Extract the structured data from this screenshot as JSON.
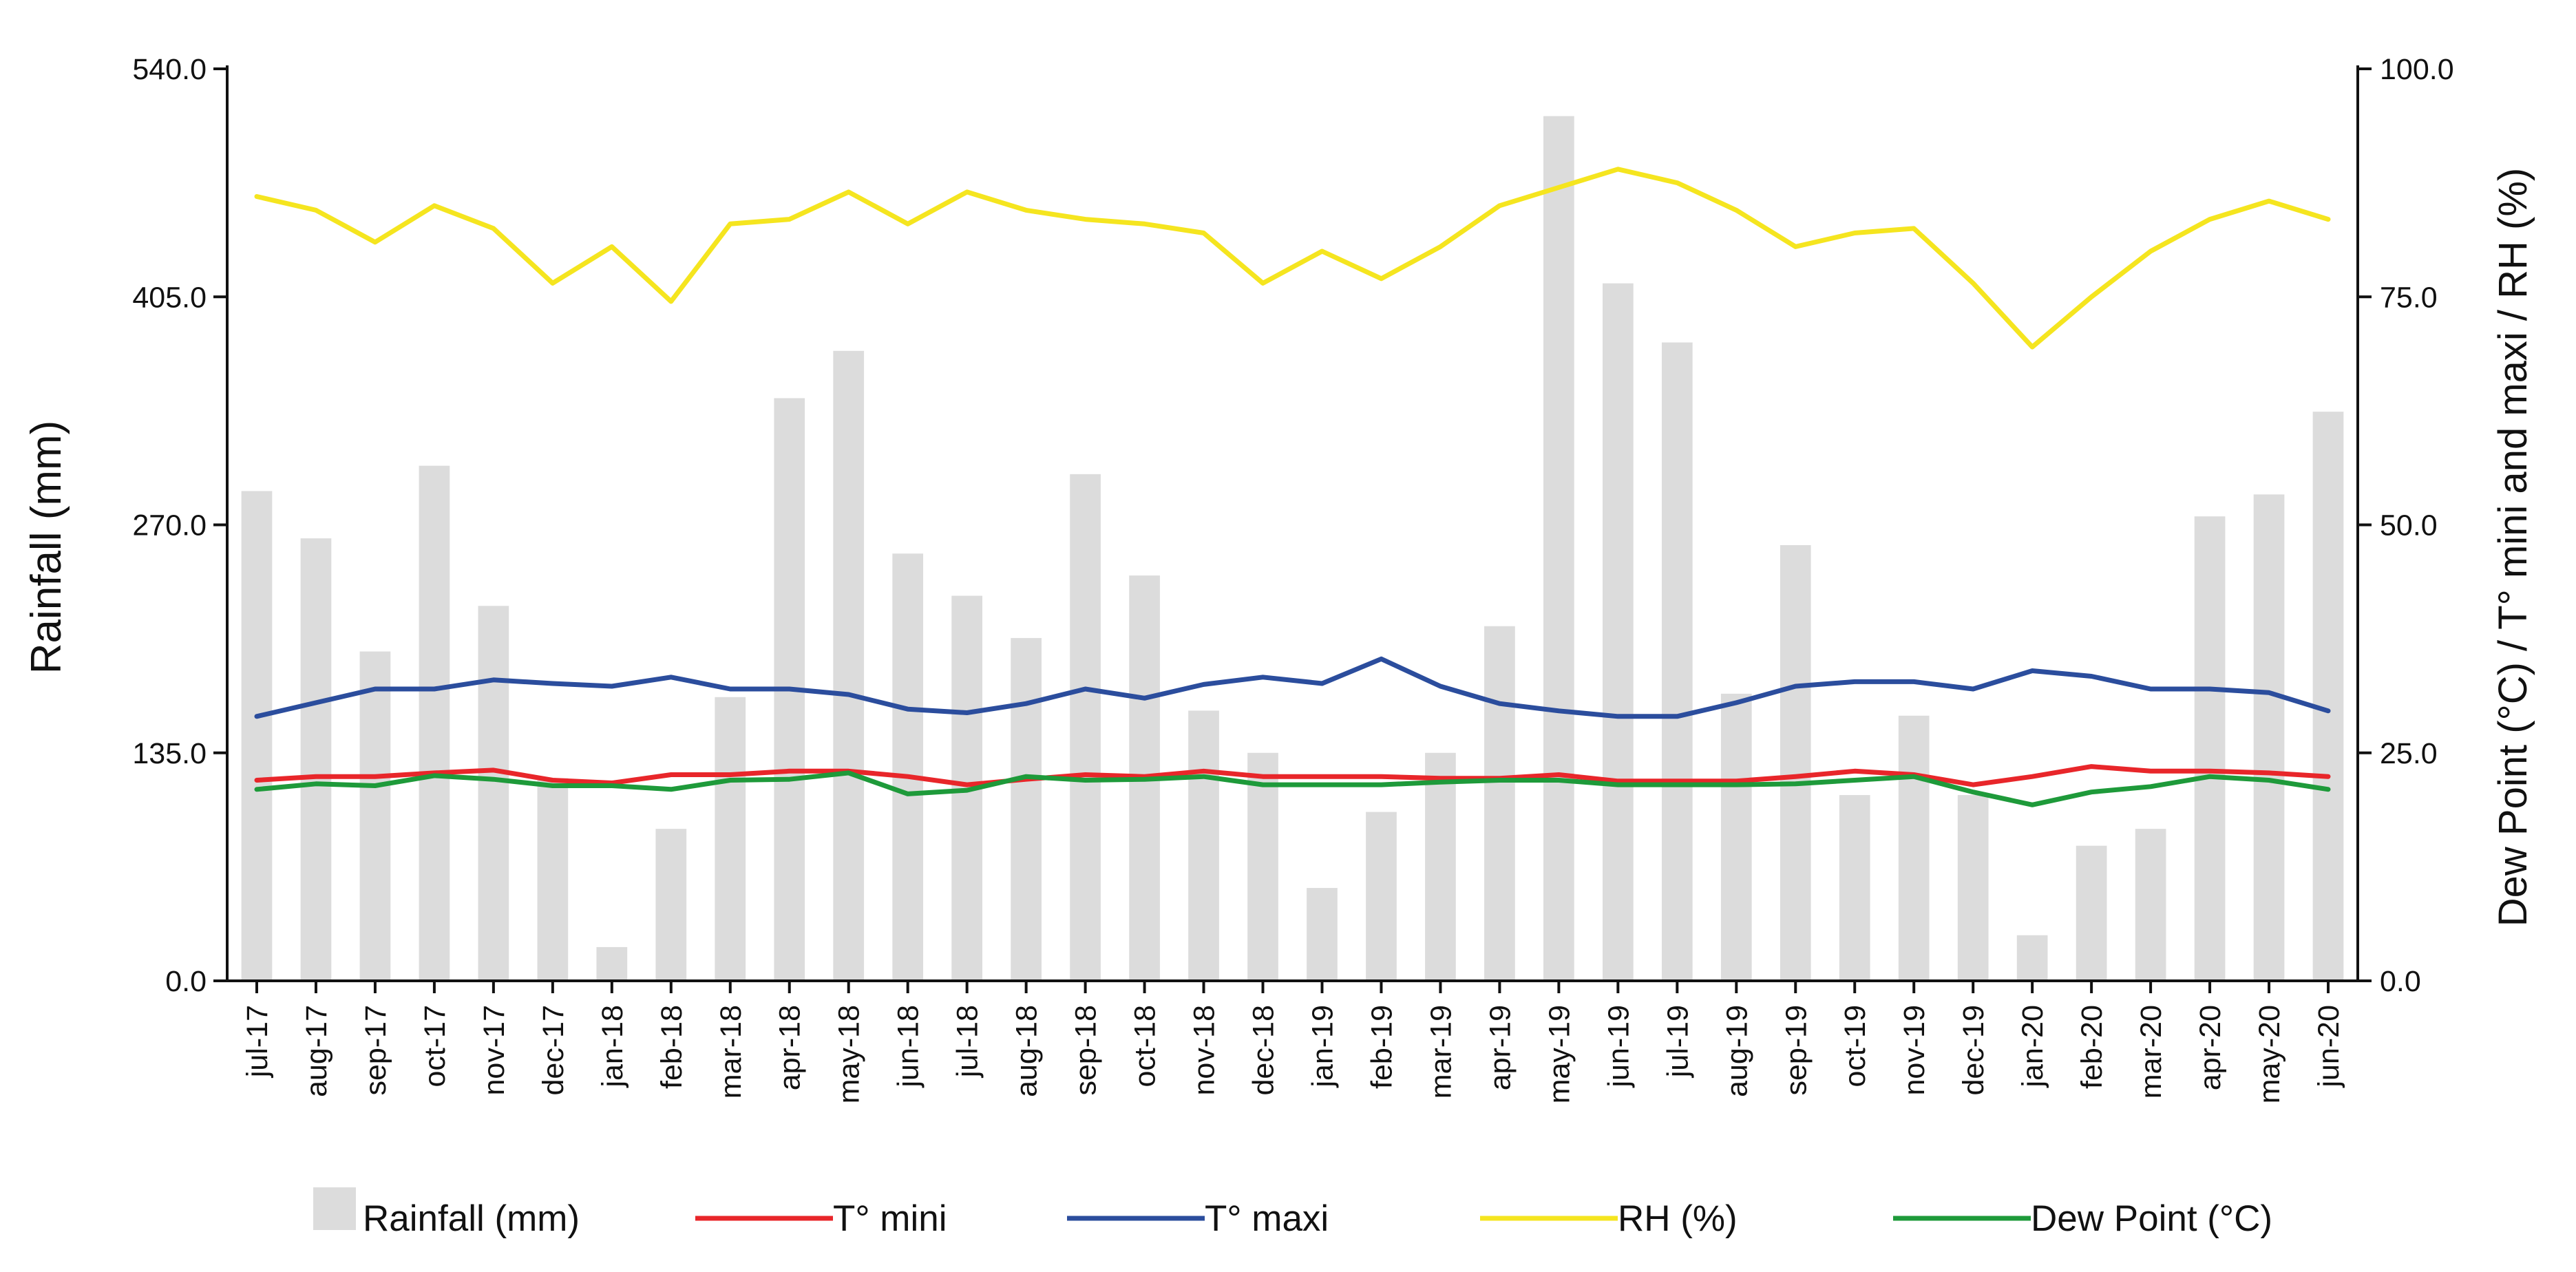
{
  "chart_data": {
    "type": "bar",
    "categories": [
      "jul-17",
      "aug-17",
      "sep-17",
      "oct-17",
      "nov-17",
      "dec-17",
      "jan-18",
      "feb-18",
      "mar-18",
      "apr-18",
      "may-18",
      "jun-18",
      "jul-18",
      "aug-18",
      "sep-18",
      "oct-18",
      "nov-18",
      "dec-18",
      "jan-19",
      "feb-19",
      "mar-19",
      "apr-19",
      "may-19",
      "jun-19",
      "jul-19",
      "aug-19",
      "sep-19",
      "oct-19",
      "nov-19",
      "dec-19",
      "jan-20",
      "feb-20",
      "mar-20",
      "apr-20",
      "may-20",
      "jun-20"
    ],
    "ylabel": "Rainfall (mm)",
    "y2label": "Dew Point  (°C) / T° mini and maxi / RH (%)",
    "ylim": [
      0,
      540
    ],
    "y2lim": [
      0,
      100
    ],
    "yticks": [
      "0.0",
      "135.0",
      "270.0",
      "405.0",
      "540.0"
    ],
    "y2ticks": [
      "0.0",
      "25.0",
      "50.0",
      "75.0",
      "100.0"
    ],
    "legend_position": "bottom",
    "grid": false,
    "series": [
      {
        "name": "Rainfall (mm)",
        "type": "bar",
        "axis": "left",
        "color": "#dcdcdc",
        "values": [
          290,
          262,
          195,
          305,
          222,
          120,
          20,
          90,
          168,
          345,
          373,
          253,
          228,
          203,
          300,
          240,
          160,
          135,
          55,
          100,
          135,
          210,
          512,
          413,
          378,
          170,
          258,
          110,
          157,
          110,
          27,
          80,
          90,
          275,
          288,
          337
        ]
      },
      {
        "name": "T° mini",
        "type": "line",
        "axis": "right",
        "color": "#e8262a",
        "values": [
          22.0,
          22.4,
          22.4,
          22.8,
          23.1,
          22.0,
          21.7,
          22.6,
          22.6,
          23.0,
          23.0,
          22.4,
          21.5,
          22.1,
          22.6,
          22.4,
          23.0,
          22.4,
          22.4,
          22.4,
          22.2,
          22.2,
          22.6,
          21.9,
          21.9,
          21.9,
          22.4,
          23.0,
          22.6,
          21.5,
          22.4,
          23.5,
          23.0,
          23.0,
          22.8,
          22.4
        ]
      },
      {
        "name": "T° maxi",
        "type": "line",
        "axis": "right",
        "color": "#2b4d9d",
        "values": [
          29.0,
          30.5,
          32.0,
          32.0,
          33.0,
          32.6,
          32.3,
          33.3,
          32.0,
          32.0,
          31.4,
          29.8,
          29.4,
          30.4,
          32.0,
          31.0,
          32.5,
          33.3,
          32.6,
          35.3,
          32.3,
          30.4,
          29.6,
          29.0,
          29.0,
          30.5,
          32.3,
          32.8,
          32.8,
          32.0,
          34.0,
          33.4,
          32.0,
          32.0,
          31.6,
          29.6
        ]
      },
      {
        "name": "RH (%)",
        "type": "line",
        "axis": "right",
        "color": "#f5e51f",
        "values": [
          86.0,
          84.5,
          81.0,
          85.0,
          82.5,
          76.5,
          80.5,
          74.5,
          83.0,
          83.5,
          86.5,
          83.0,
          86.5,
          84.5,
          83.5,
          83.0,
          82.0,
          76.5,
          80.0,
          77.0,
          80.5,
          85.0,
          87.0,
          89.0,
          87.5,
          84.5,
          80.5,
          82.0,
          82.5,
          76.5,
          69.5,
          75.0,
          80.0,
          83.5,
          85.5,
          83.5
        ]
      },
      {
        "name": "Dew Point (°C)",
        "type": "line",
        "axis": "right",
        "color": "#1e9a3a",
        "values": [
          21.0,
          21.6,
          21.4,
          22.5,
          22.1,
          21.4,
          21.4,
          21.0,
          22.0,
          22.1,
          22.8,
          20.5,
          20.9,
          22.4,
          22.0,
          22.1,
          22.4,
          21.5,
          21.5,
          21.5,
          21.8,
          22.0,
          22.0,
          21.5,
          21.5,
          21.5,
          21.6,
          22.0,
          22.4,
          20.7,
          19.3,
          20.7,
          21.3,
          22.4,
          22.0,
          21.0
        ]
      }
    ]
  }
}
